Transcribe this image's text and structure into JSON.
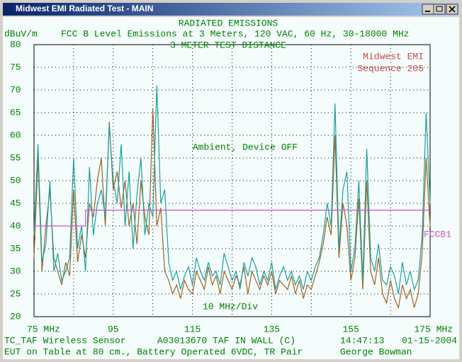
{
  "window_title": "Midwest EMI Radiated Test - MAIN",
  "chart_data": {
    "type": "line",
    "title": "RADIATED EMISSIONS",
    "subtitle": "FCC B Level Emissions at 3 Meters, 120 VAC, 60 Hz, 30-18000 MHz",
    "test_distance": "3 METER TEST DISTANCE",
    "ylabel": "dBuV/m",
    "lab": [
      "Midwest EMI",
      "Sequence 205"
    ],
    "condition": "Ambient, Device OFF",
    "scale_note": "10 MHz/Div",
    "xlim": [
      75,
      175
    ],
    "ylim": [
      20,
      80
    ],
    "xticks": [
      {
        "value": 75,
        "label": "75 MHz"
      },
      95,
      115,
      135,
      155,
      {
        "value": 175,
        "label": "175 MHz"
      }
    ],
    "xgrid": [
      85,
      95,
      105,
      115,
      125,
      135,
      145,
      155,
      165
    ],
    "yticks": [
      20,
      25,
      30,
      35,
      40,
      45,
      50,
      55,
      60,
      65,
      70,
      75,
      80
    ],
    "grid": true,
    "x": [
      75,
      76,
      77,
      78,
      79,
      80,
      81,
      82,
      83,
      84,
      85,
      86,
      87,
      88,
      89,
      90,
      91,
      92,
      93,
      94,
      95,
      96,
      97,
      98,
      99,
      100,
      101,
      102,
      103,
      104,
      105,
      106,
      107,
      108,
      109,
      110,
      111,
      112,
      113,
      114,
      115,
      116,
      117,
      118,
      119,
      120,
      121,
      122,
      123,
      124,
      125,
      126,
      127,
      128,
      129,
      130,
      131,
      132,
      133,
      134,
      135,
      136,
      137,
      138,
      139,
      140,
      141,
      142,
      143,
      144,
      145,
      146,
      147,
      148,
      149,
      150,
      151,
      152,
      153,
      154,
      155,
      156,
      157,
      158,
      159,
      160,
      161,
      162,
      163,
      164,
      165,
      166,
      167,
      168,
      169,
      170,
      171,
      172,
      173,
      174,
      175
    ],
    "series": [
      {
        "color": "#a0621e",
        "values": [
          33,
          55,
          30,
          40,
          48,
          33,
          30,
          27,
          32,
          29,
          48,
          32,
          38,
          33,
          45,
          42,
          50,
          55,
          40,
          63,
          48,
          52,
          44,
          50,
          40,
          45,
          36,
          50,
          42,
          38,
          66,
          40,
          44,
          30,
          28,
          25,
          27,
          24,
          28,
          26,
          25,
          30,
          28,
          26,
          31,
          27,
          29,
          25,
          30,
          28,
          26,
          29,
          27,
          31,
          25,
          30,
          28,
          26,
          29,
          27,
          30,
          25,
          28,
          27,
          26,
          29,
          25,
          28,
          24,
          27,
          26,
          29,
          32,
          36,
          42,
          38,
          60,
          33,
          45,
          40,
          28,
          33,
          46,
          26,
          50,
          30,
          27,
          33,
          25,
          23,
          28,
          24,
          22,
          27,
          24,
          26,
          22,
          25,
          34,
          55,
          40
        ]
      },
      {
        "color": "#1aa0a0",
        "values": [
          38,
          58,
          32,
          36,
          50,
          30,
          34,
          28,
          30,
          33,
          55,
          35,
          40,
          30,
          53,
          38,
          45,
          48,
          42,
          62,
          50,
          45,
          58,
          40,
          52,
          35,
          47,
          55,
          38,
          45,
          42,
          71,
          45,
          48,
          32,
          28,
          30,
          26,
          29,
          31,
          27,
          33,
          30,
          28,
          32,
          29,
          30,
          27,
          34,
          31,
          28,
          30,
          26,
          32,
          29,
          33,
          31,
          27,
          30,
          28,
          32,
          26,
          29,
          31,
          28,
          30,
          27,
          29,
          26,
          30,
          28,
          31,
          33,
          38,
          45,
          40,
          67,
          35,
          48,
          52,
          30,
          35,
          50,
          28,
          57,
          33,
          30,
          36,
          28,
          27,
          31,
          29,
          25,
          32,
          27,
          30,
          26,
          28,
          38,
          65,
          45
        ]
      },
      {
        "name": "FCCB1",
        "color": "#d050d0",
        "x": [
          75,
          88,
          88,
          175
        ],
        "values": [
          40,
          40,
          43.5,
          43.5
        ]
      }
    ]
  },
  "footer": {
    "eut": "TC_TAF Wireless Sensor",
    "id": "A03013670 TAF IN WALL (C)",
    "time": "14:47:13",
    "date": "01-15-2004",
    "setup": "EUT on Table at 80 cm., Battery Operated 6VDC, TR Pair",
    "operator": "George Bowman"
  }
}
